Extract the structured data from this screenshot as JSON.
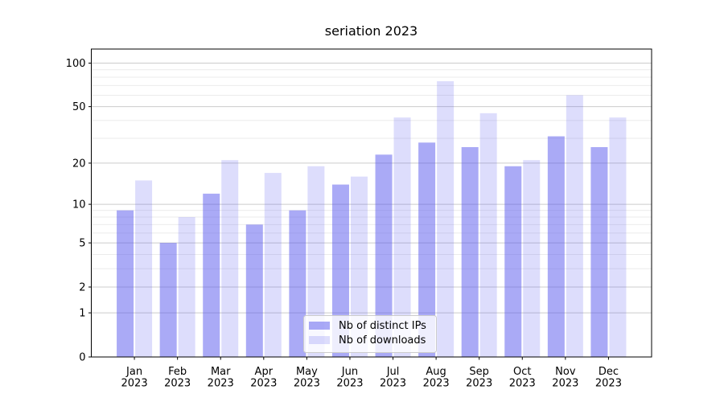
{
  "chart_data": {
    "type": "bar",
    "title": "seriation 2023",
    "categories": [
      "Jan 2023",
      "Feb 2023",
      "Mar 2023",
      "Apr 2023",
      "May 2023",
      "Jun 2023",
      "Jul 2023",
      "Aug 2023",
      "Sep 2023",
      "Oct 2023",
      "Nov 2023",
      "Dec 2023"
    ],
    "series": [
      {
        "name": "Nb of distinct IPs",
        "color": "rgba(85,85,238,0.5)",
        "values": [
          9,
          5,
          12,
          7,
          9,
          14,
          23,
          28,
          26,
          19,
          31,
          26
        ]
      },
      {
        "name": "Nb of downloads",
        "color": "rgba(85,85,238,0.2)",
        "values": [
          15,
          8,
          21,
          17,
          19,
          16,
          42,
          75,
          45,
          21,
          60,
          42
        ]
      }
    ],
    "xlabel": "",
    "ylabel": "",
    "yscale": "log(1+x)",
    "ylim": [
      0,
      125
    ],
    "yticks": [
      0,
      1,
      2,
      5,
      10,
      20,
      50,
      100
    ],
    "y_minor_ticks": [
      3,
      4,
      6,
      7,
      8,
      9,
      30,
      40,
      60,
      70,
      80,
      90
    ],
    "grid": true,
    "legend_position": "lower center"
  },
  "colors": {
    "background": "#ffffff",
    "bar_base": "#5555ee",
    "major_grid": "#cccccc",
    "minor_grid": "#ebebeb",
    "axis": "#000000",
    "text": "#000000",
    "legend_border": "#cccccc",
    "legend_bg": "rgba(255,255,255,0.8)"
  }
}
